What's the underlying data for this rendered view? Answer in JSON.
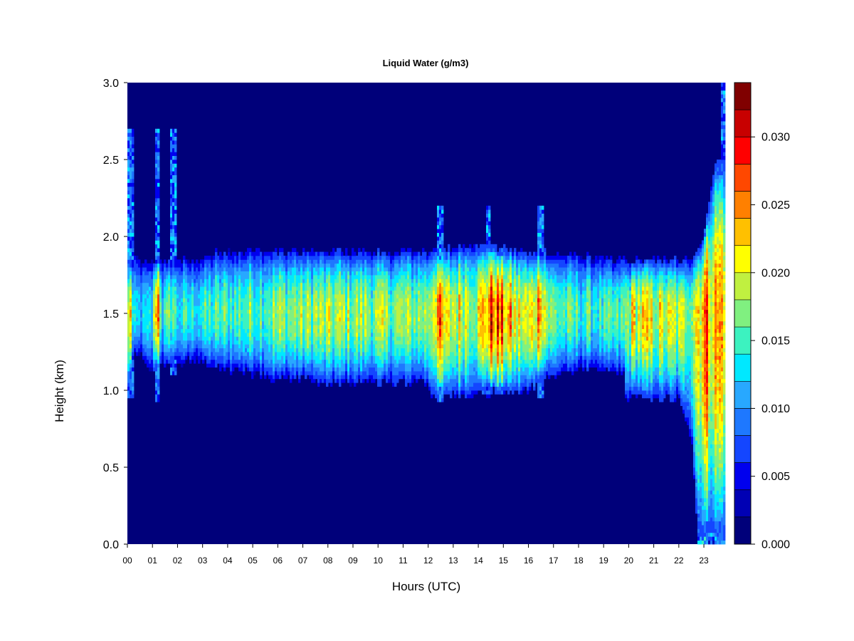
{
  "chart_data": {
    "type": "heatmap",
    "title": "Liquid Water (g/m3)",
    "xlabel": "Hours (UTC)",
    "ylabel": "Height (km)",
    "xlim": [
      0,
      23.85
    ],
    "ylim": [
      0,
      3.0
    ],
    "x_ticks": [
      "00",
      "01",
      "02",
      "03",
      "04",
      "05",
      "06",
      "07",
      "08",
      "09",
      "10",
      "11",
      "12",
      "13",
      "14",
      "15",
      "16",
      "17",
      "18",
      "19",
      "20",
      "21",
      "22",
      "23"
    ],
    "y_ticks": [
      "0.0",
      "0.5",
      "1.0",
      "1.5",
      "2.0",
      "2.5",
      "3.0"
    ],
    "colorbar": {
      "range": [
        0,
        0.034
      ],
      "step": 0.002,
      "ticks": [
        "0.000",
        "0.005",
        "0.010",
        "0.015",
        "0.020",
        "0.025",
        "0.030"
      ],
      "colors": [
        "#00007a",
        "#0000b4",
        "#0000ee",
        "#1446ff",
        "#1e78ff",
        "#28a8ff",
        "#00e8ff",
        "#3cf2c0",
        "#80f080",
        "#c0f040",
        "#ffff00",
        "#ffc000",
        "#ff8000",
        "#ff4800",
        "#ff0000",
        "#c80000",
        "#800000"
      ]
    },
    "cloud_layer": {
      "base_km": [
        [
          0.0,
          0.95
        ],
        [
          0.3,
          1.25
        ],
        [
          1.0,
          1.15
        ],
        [
          2.5,
          1.2
        ],
        [
          5.0,
          1.1
        ],
        [
          8.0,
          1.05
        ],
        [
          12.0,
          1.05
        ],
        [
          12.1,
          0.95
        ],
        [
          14.0,
          0.98
        ],
        [
          16.0,
          1.0
        ],
        [
          17.0,
          1.1
        ],
        [
          19.0,
          1.15
        ],
        [
          19.8,
          1.1
        ],
        [
          19.85,
          0.95
        ],
        [
          22.0,
          0.95
        ],
        [
          22.5,
          0.7
        ],
        [
          22.8,
          0.0
        ],
        [
          23.85,
          0.0
        ]
      ],
      "top_km": [
        [
          0.0,
          1.85
        ],
        [
          3.0,
          1.85
        ],
        [
          3.5,
          1.9
        ],
        [
          12.0,
          1.9
        ],
        [
          14.0,
          1.95
        ],
        [
          16.0,
          1.9
        ],
        [
          19.5,
          1.85
        ],
        [
          22.5,
          1.85
        ],
        [
          23.0,
          2.0
        ],
        [
          23.5,
          2.5
        ],
        [
          23.85,
          2.5
        ]
      ],
      "core_km": 1.5,
      "intensity": [
        [
          0.0,
          0.016
        ],
        [
          0.3,
          0.012
        ],
        [
          1.0,
          0.013
        ],
        [
          1.2,
          0.03
        ],
        [
          1.4,
          0.013
        ],
        [
          1.8,
          0.018
        ],
        [
          2.0,
          0.014
        ],
        [
          3.0,
          0.015
        ],
        [
          6.0,
          0.018
        ],
        [
          9.0,
          0.019
        ],
        [
          11.0,
          0.018
        ],
        [
          12.0,
          0.019
        ],
        [
          12.4,
          0.027
        ],
        [
          12.7,
          0.02
        ],
        [
          13.5,
          0.022
        ],
        [
          14.0,
          0.021
        ],
        [
          14.6,
          0.029
        ],
        [
          15.0,
          0.026
        ],
        [
          15.5,
          0.021
        ],
        [
          16.0,
          0.02
        ],
        [
          16.5,
          0.027
        ],
        [
          16.8,
          0.018
        ],
        [
          17.5,
          0.016
        ],
        [
          19.5,
          0.015
        ],
        [
          19.8,
          0.016
        ],
        [
          20.2,
          0.022
        ],
        [
          21.0,
          0.021
        ],
        [
          22.0,
          0.019
        ],
        [
          22.5,
          0.02
        ],
        [
          23.0,
          0.027
        ],
        [
          23.5,
          0.024
        ],
        [
          23.85,
          0.026
        ]
      ]
    },
    "spikes": [
      {
        "x": 0.1,
        "top_km": 2.7,
        "base_km": 0.95,
        "peak": 0.028
      },
      {
        "x": 1.2,
        "top_km": 2.7,
        "base_km": 0.92,
        "peak": 0.031
      },
      {
        "x": 1.8,
        "top_km": 2.7,
        "base_km": 1.1,
        "peak": 0.02
      },
      {
        "x": 12.5,
        "top_km": 2.2,
        "base_km": 0.92,
        "peak": 0.028
      },
      {
        "x": 14.4,
        "top_km": 2.2,
        "base_km": 0.95,
        "peak": 0.025
      },
      {
        "x": 16.5,
        "top_km": 2.2,
        "base_km": 0.95,
        "peak": 0.027
      },
      {
        "x": 23.8,
        "top_km": 3.0,
        "base_km": 0.0,
        "peak": 0.02
      }
    ]
  }
}
